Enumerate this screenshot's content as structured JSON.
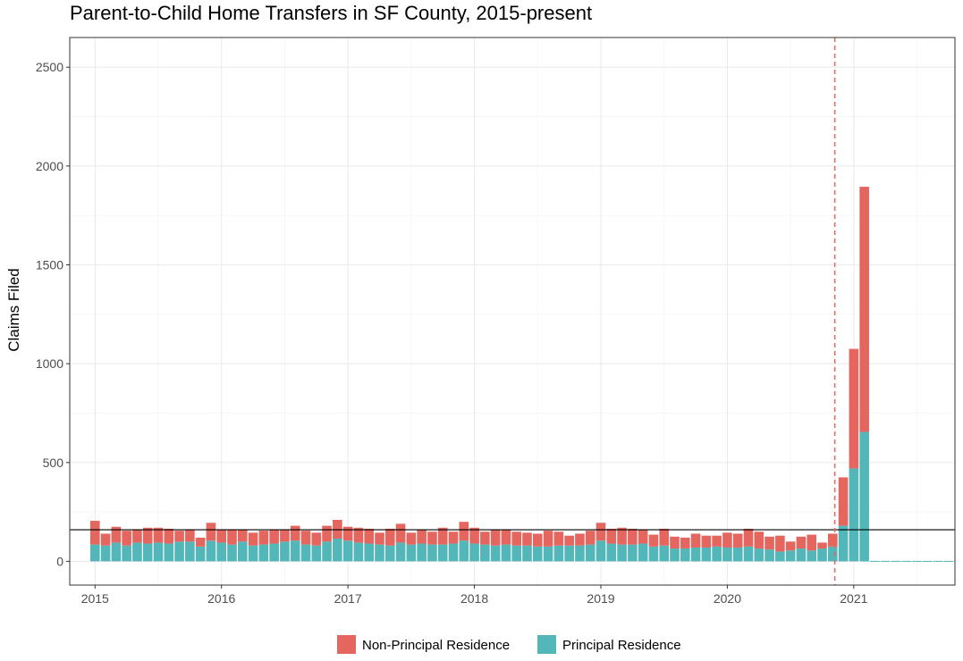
{
  "chart_data": {
    "type": "bar",
    "stacked": true,
    "title": "Parent-to-Child Home Transfers in SF County, 2015-present",
    "xlabel": "",
    "ylabel": "Claims Filed",
    "xlim": [
      2014.8,
      2021.8
    ],
    "ylim": [
      -120,
      2650
    ],
    "x_ticks": [
      "2015",
      "2016",
      "2017",
      "2018",
      "2019",
      "2020",
      "2021"
    ],
    "y_ticks": [
      "0",
      "500",
      "1000",
      "1500",
      "2000",
      "2500"
    ],
    "grid": true,
    "legend_position": "bottom",
    "series": [
      {
        "name": "Principal Residence",
        "color": "#53b6b9",
        "values": [
          85,
          80,
          95,
          80,
          95,
          90,
          95,
          90,
          100,
          100,
          75,
          105,
          95,
          85,
          100,
          80,
          85,
          90,
          100,
          105,
          85,
          80,
          100,
          115,
          105,
          95,
          90,
          85,
          80,
          95,
          85,
          90,
          85,
          85,
          90,
          105,
          90,
          85,
          80,
          85,
          80,
          80,
          75,
          75,
          80,
          80,
          80,
          85,
          105,
          90,
          85,
          85,
          90,
          75,
          80,
          65,
          65,
          70,
          70,
          75,
          70,
          70,
          75,
          65,
          60,
          50,
          55,
          65,
          55,
          65,
          75,
          180,
          470,
          655,
          0,
          0,
          0,
          0,
          0,
          0,
          0,
          0
        ]
      },
      {
        "name": "Non-Principal Residence",
        "color": "#e4665e",
        "values": [
          120,
          60,
          80,
          75,
          65,
          80,
          75,
          75,
          55,
          60,
          45,
          90,
          65,
          75,
          60,
          65,
          70,
          70,
          60,
          75,
          70,
          65,
          80,
          95,
          70,
          75,
          75,
          60,
          85,
          95,
          60,
          70,
          65,
          85,
          60,
          95,
          80,
          65,
          80,
          75,
          70,
          65,
          65,
          80,
          70,
          50,
          60,
          70,
          90,
          75,
          85,
          80,
          70,
          60,
          85,
          60,
          55,
          70,
          60,
          55,
          75,
          70,
          90,
          85,
          65,
          80,
          45,
          60,
          80,
          30,
          65,
          245,
          605,
          1240,
          0,
          0,
          0,
          0,
          0,
          0,
          0,
          0
        ]
      }
    ],
    "reference_hline": 160,
    "reference_vline": 2020.85
  }
}
